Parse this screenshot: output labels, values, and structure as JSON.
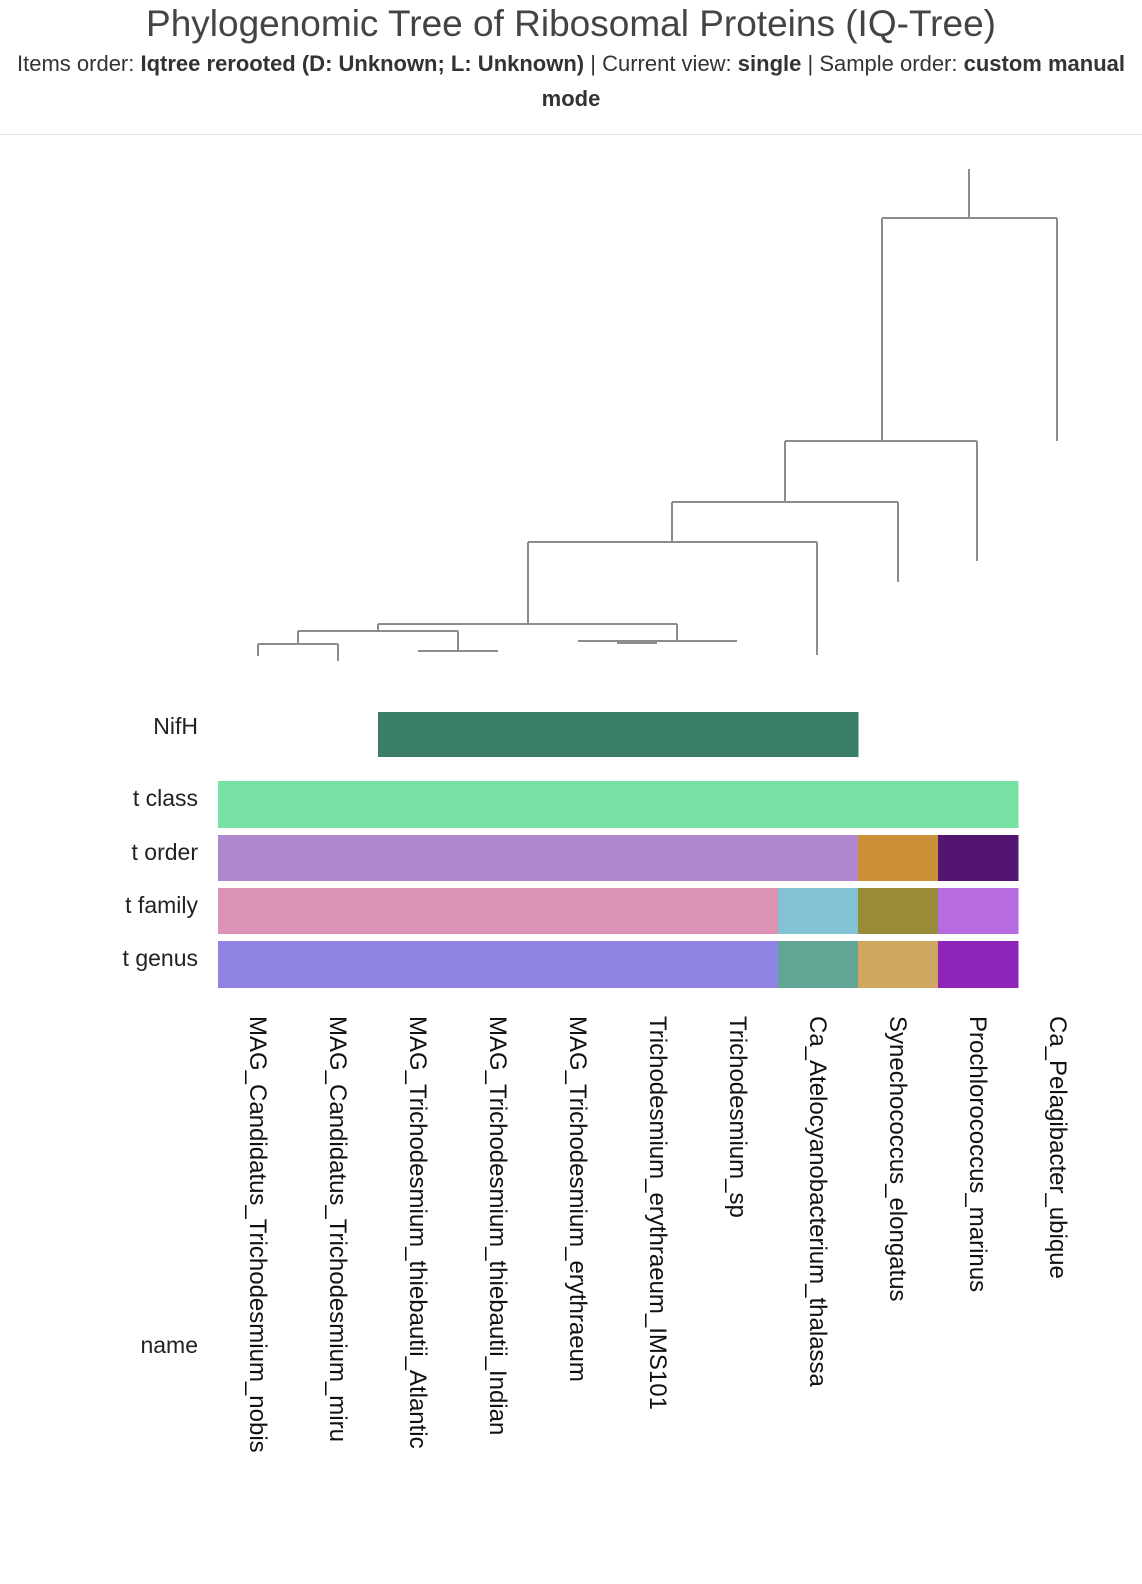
{
  "header": {
    "title": "Phylogenomic Tree of Ribosomal Proteins (IQ-Tree)",
    "items_order_label": "Items order: ",
    "items_order_value": "Iqtree rerooted (D: Unknown; L: Unknown)",
    "sep1": " | Current view: ",
    "current_view_value": "single",
    "sep2": " | Sample order: ",
    "sample_order_value": "custom manual mode"
  },
  "layers": {
    "nifh": {
      "label": "NifH",
      "color": "#3a7e66"
    },
    "t_class": {
      "label": "t class"
    },
    "t_order": {
      "label": "t order"
    },
    "t_family": {
      "label": "t family"
    },
    "t_genus": {
      "label": "t genus"
    },
    "name": {
      "label": "name"
    }
  },
  "items": [
    {
      "name": "MAG_Candidatus_Trichodesmium_nobis",
      "nifh": false,
      "class": "#77e2a4",
      "order": "#b088cd",
      "family": "#db92b4",
      "genus": "#8f84e3"
    },
    {
      "name": "MAG_Candidatus_Trichodesmium_miru",
      "nifh": false,
      "class": "#77e2a4",
      "order": "#b088cd",
      "family": "#db92b4",
      "genus": "#8f84e3"
    },
    {
      "name": "MAG_Trichodesmium_thiebautii_Atlantic",
      "nifh": true,
      "class": "#77e2a4",
      "order": "#b088cd",
      "family": "#db92b4",
      "genus": "#8f84e3"
    },
    {
      "name": "MAG_Trichodesmium_thiebautii_Indian",
      "nifh": true,
      "class": "#77e2a4",
      "order": "#b088cd",
      "family": "#db92b4",
      "genus": "#8f84e3"
    },
    {
      "name": "MAG_Trichodesmium_erythraeum",
      "nifh": true,
      "class": "#77e2a4",
      "order": "#b088cd",
      "family": "#db92b4",
      "genus": "#8f84e3"
    },
    {
      "name": "Trichodesmium_erythraeum_IMS101",
      "nifh": true,
      "class": "#77e2a4",
      "order": "#b088cd",
      "family": "#db92b4",
      "genus": "#8f84e3"
    },
    {
      "name": "Trichodesmium_sp",
      "nifh": true,
      "class": "#77e2a4",
      "order": "#b088cd",
      "family": "#db92b4",
      "genus": "#8f84e3"
    },
    {
      "name": "Ca_Atelocyanobacterium_thalassa",
      "nifh": true,
      "class": "#77e2a4",
      "order": "#b088cd",
      "family": "#81c2d5",
      "genus": "#63a595"
    },
    {
      "name": "Synechococcus_elongatus",
      "nifh": false,
      "class": "#77e2a4",
      "order": "#cb9037",
      "family": "#9a8b38",
      "genus": "#cfa760"
    },
    {
      "name": "Prochlorococcus_marinus",
      "nifh": false,
      "class": "#77e2a4",
      "order": "#521572",
      "family": "#b66be0",
      "genus": "#8e24b8"
    },
    {
      "name": "Ca_Pelagibacter_ubique",
      "nifh": false,
      "class": null,
      "order": null,
      "family": null,
      "genus": null
    }
  ]
}
